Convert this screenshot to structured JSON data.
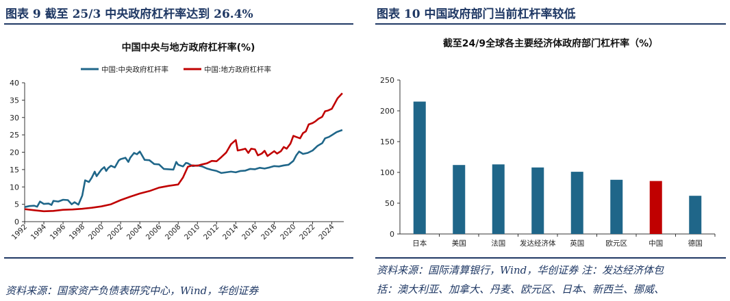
{
  "left": {
    "figure_label": "图表 9 截至 25/3 中央政府杠杆率达到 26.4%",
    "chart_title": "中国中央与地方政府杠杆率(%)",
    "source": "资料来源：国家资产负债表研究中心，Wind，华创证券"
  },
  "right": {
    "figure_label": "图表 10 中国政府部门当前杠杆率较低",
    "chart_title": "截至24/9全球各主要经济体政府部门杠杆率（%）",
    "source_line1": "资料来源：国际清算银行，Wind，华创证券 注：发达经济体包",
    "source_line2": "括：澳大利亚、加拿大、丹麦、欧元区、日本、新西兰、挪威、"
  },
  "colors": {
    "central": "#1f6689",
    "local": "#c00000",
    "bar": "#1f6689",
    "bar_highlight": "#c00000",
    "heading": "#1f3864"
  },
  "chart_data": [
    {
      "type": "line",
      "title": "中国中央与地方政府杠杆率(%)",
      "ylim": [
        0,
        40
      ],
      "yticks": [
        0,
        5,
        10,
        15,
        20,
        25,
        30,
        35,
        40
      ],
      "xlim": [
        1992,
        2025.25
      ],
      "xticks": [
        "1992",
        "1994",
        "1996",
        "1998",
        "2000",
        "2002",
        "2004",
        "2006",
        "2008",
        "2010",
        "2012",
        "2014",
        "2016",
        "2018",
        "2020",
        "2022",
        "2024"
      ],
      "legend": "top",
      "grid": false,
      "series": [
        {
          "name": "中国:中央政府杠杆率",
          "color": "#1f6689",
          "points": [
            [
              1992,
              4.2
            ],
            [
              1992.5,
              4.5
            ],
            [
              1993,
              4.6
            ],
            [
              1993.3,
              4.3
            ],
            [
              1993.6,
              5.8
            ],
            [
              1994,
              5.1
            ],
            [
              1994.5,
              5.2
            ],
            [
              1994.8,
              4.8
            ],
            [
              1995,
              6.0
            ],
            [
              1995.5,
              5.8
            ],
            [
              1996,
              6.3
            ],
            [
              1996.5,
              6.2
            ],
            [
              1996.9,
              5.0
            ],
            [
              1997.2,
              5.6
            ],
            [
              1997.6,
              4.9
            ],
            [
              1998,
              7.5
            ],
            [
              1998.3,
              11.9
            ],
            [
              1998.7,
              11.4
            ],
            [
              1999,
              12.7
            ],
            [
              1999.3,
              14.4
            ],
            [
              1999.5,
              13.1
            ],
            [
              2000,
              15.0
            ],
            [
              2000.3,
              15.7
            ],
            [
              2000.5,
              14.6
            ],
            [
              2000.7,
              15.4
            ],
            [
              2001,
              16.1
            ],
            [
              2001.4,
              15.6
            ],
            [
              2001.8,
              17.6
            ],
            [
              2002,
              18.0
            ],
            [
              2002.5,
              18.4
            ],
            [
              2002.8,
              17.2
            ],
            [
              2003,
              18.4
            ],
            [
              2003.4,
              19.8
            ],
            [
              2003.7,
              19.4
            ],
            [
              2004,
              20.2
            ],
            [
              2004.5,
              17.8
            ],
            [
              2005,
              17.7
            ],
            [
              2005.5,
              16.6
            ],
            [
              2006,
              16.5
            ],
            [
              2006.5,
              15.2
            ],
            [
              2007,
              15.1
            ],
            [
              2007.5,
              15.0
            ],
            [
              2007.8,
              17.2
            ],
            [
              2008,
              16.4
            ],
            [
              2008.5,
              15.9
            ],
            [
              2008.8,
              16.9
            ],
            [
              2009,
              16.8
            ],
            [
              2009.5,
              16.0
            ],
            [
              2010,
              16.2
            ],
            [
              2010.5,
              15.9
            ],
            [
              2011,
              15.3
            ],
            [
              2011.5,
              14.9
            ],
            [
              2012,
              14.6
            ],
            [
              2012.5,
              14.0
            ],
            [
              2013,
              14.2
            ],
            [
              2013.5,
              14.4
            ],
            [
              2014,
              14.2
            ],
            [
              2014.5,
              14.6
            ],
            [
              2015,
              14.7
            ],
            [
              2015.5,
              15.2
            ],
            [
              2016,
              15.1
            ],
            [
              2016.5,
              15.5
            ],
            [
              2017,
              15.3
            ],
            [
              2017.5,
              15.6
            ],
            [
              2018,
              16.0
            ],
            [
              2018.5,
              15.9
            ],
            [
              2019,
              16.2
            ],
            [
              2019.5,
              16.4
            ],
            [
              2020,
              17.5
            ],
            [
              2020.3,
              19.1
            ],
            [
              2020.6,
              20.2
            ],
            [
              2021,
              19.5
            ],
            [
              2021.5,
              19.8
            ],
            [
              2022,
              20.5
            ],
            [
              2022.5,
              21.8
            ],
            [
              2023,
              22.6
            ],
            [
              2023.3,
              24.0
            ],
            [
              2023.7,
              24.4
            ],
            [
              2024,
              24.9
            ],
            [
              2024.5,
              25.8
            ],
            [
              2025.1,
              26.4
            ]
          ]
        },
        {
          "name": "中国:地方政府杠杆率",
          "color": "#c00000",
          "points": [
            [
              1992,
              3.6
            ],
            [
              1993,
              3.3
            ],
            [
              1994,
              3.0
            ],
            [
              1995,
              3.1
            ],
            [
              1996,
              3.4
            ],
            [
              1997,
              3.5
            ],
            [
              1998,
              3.7
            ],
            [
              1999,
              4.0
            ],
            [
              2000,
              4.4
            ],
            [
              2001,
              5.0
            ],
            [
              2002,
              6.2
            ],
            [
              2003,
              7.2
            ],
            [
              2004,
              8.1
            ],
            [
              2005,
              8.8
            ],
            [
              2006,
              9.8
            ],
            [
              2007,
              10.3
            ],
            [
              2008,
              10.7
            ],
            [
              2008.5,
              12.7
            ],
            [
              2009,
              15.8
            ],
            [
              2009.5,
              16.2
            ],
            [
              2010,
              16.1
            ],
            [
              2010.5,
              16.5
            ],
            [
              2011,
              16.8
            ],
            [
              2011.5,
              17.5
            ],
            [
              2012,
              17.4
            ],
            [
              2012.5,
              18.6
            ],
            [
              2013,
              19.9
            ],
            [
              2013.5,
              22.3
            ],
            [
              2014,
              23.5
            ],
            [
              2014.2,
              20.5
            ],
            [
              2014.6,
              20.7
            ],
            [
              2015,
              21.0
            ],
            [
              2015.3,
              19.8
            ],
            [
              2015.6,
              21.0
            ],
            [
              2016,
              20.8
            ],
            [
              2016.3,
              19.1
            ],
            [
              2016.7,
              19.6
            ],
            [
              2017,
              20.4
            ],
            [
              2017.3,
              18.9
            ],
            [
              2017.7,
              19.7
            ],
            [
              2018,
              20.3
            ],
            [
              2018.3,
              19.6
            ],
            [
              2018.7,
              20.3
            ],
            [
              2019,
              21.5
            ],
            [
              2019.3,
              21.0
            ],
            [
              2019.7,
              22.5
            ],
            [
              2020,
              24.7
            ],
            [
              2020.3,
              24.4
            ],
            [
              2020.7,
              24.0
            ],
            [
              2021,
              25.5
            ],
            [
              2021.3,
              26.0
            ],
            [
              2021.6,
              28.0
            ],
            [
              2022,
              28.4
            ],
            [
              2022.3,
              28.9
            ],
            [
              2022.6,
              29.6
            ],
            [
              2023,
              30.2
            ],
            [
              2023.3,
              31.8
            ],
            [
              2023.6,
              32.0
            ],
            [
              2024,
              32.5
            ],
            [
              2024.3,
              34.0
            ],
            [
              2024.6,
              35.5
            ],
            [
              2025.1,
              37.0
            ]
          ]
        }
      ]
    },
    {
      "type": "bar",
      "title": "截至24/9全球各主要经济体政府部门杠杆率（%）",
      "categories": [
        "日本",
        "美国",
        "法国",
        "发达经济体",
        "英国",
        "欧元区",
        "中国",
        "德国"
      ],
      "values": [
        215,
        112,
        113,
        108,
        101,
        88,
        86,
        62
      ],
      "highlight": "中国",
      "ylim": [
        0,
        250
      ],
      "yticks": [
        0,
        50,
        100,
        150,
        200,
        250
      ],
      "grid": false
    }
  ]
}
